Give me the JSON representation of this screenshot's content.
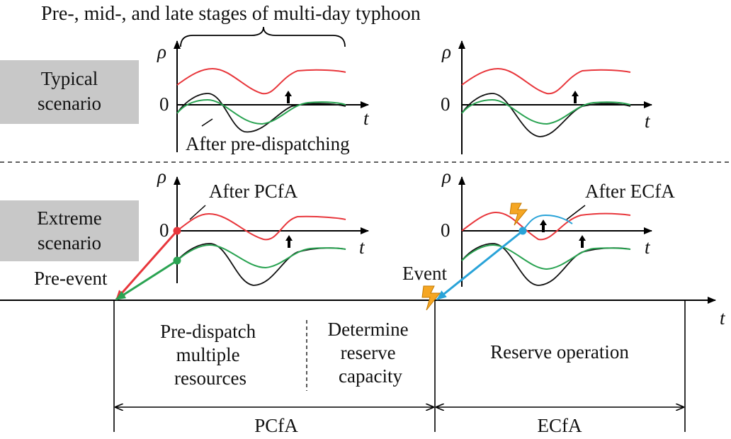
{
  "header": {
    "title": "Pre-, mid-, and late stages of multi-day typhoon"
  },
  "scenarios": {
    "typical": {
      "line1": "Typical",
      "line2": "scenario"
    },
    "extreme": {
      "line1": "Extreme",
      "line2": "scenario"
    }
  },
  "axis_labels": {
    "rho": "ρ",
    "t": "t",
    "zero": "0"
  },
  "annotations": {
    "after_pre_dispatching": "After pre-dispatching",
    "after_pcfa": "After PCfA",
    "after_ecfa": "After ECfA",
    "pre_event": "Pre-event",
    "event": "Event"
  },
  "timeline": {
    "pcfa_box1": [
      "Pre-dispatch",
      "multiple",
      "resources"
    ],
    "pcfa_box2": [
      "Determine",
      "reserve",
      "capacity"
    ],
    "ecfa_box": "Reserve operation",
    "pcfa_label": "PCfA",
    "ecfa_label": "ECfA"
  },
  "colors": {
    "red_curve": "#e8363b",
    "green_curve": "#2aa352",
    "black_curve": "#111111",
    "blue_arrow": "#29a3d8",
    "scenario_box": "#c8c8c8",
    "lightning": "#f5a623"
  }
}
